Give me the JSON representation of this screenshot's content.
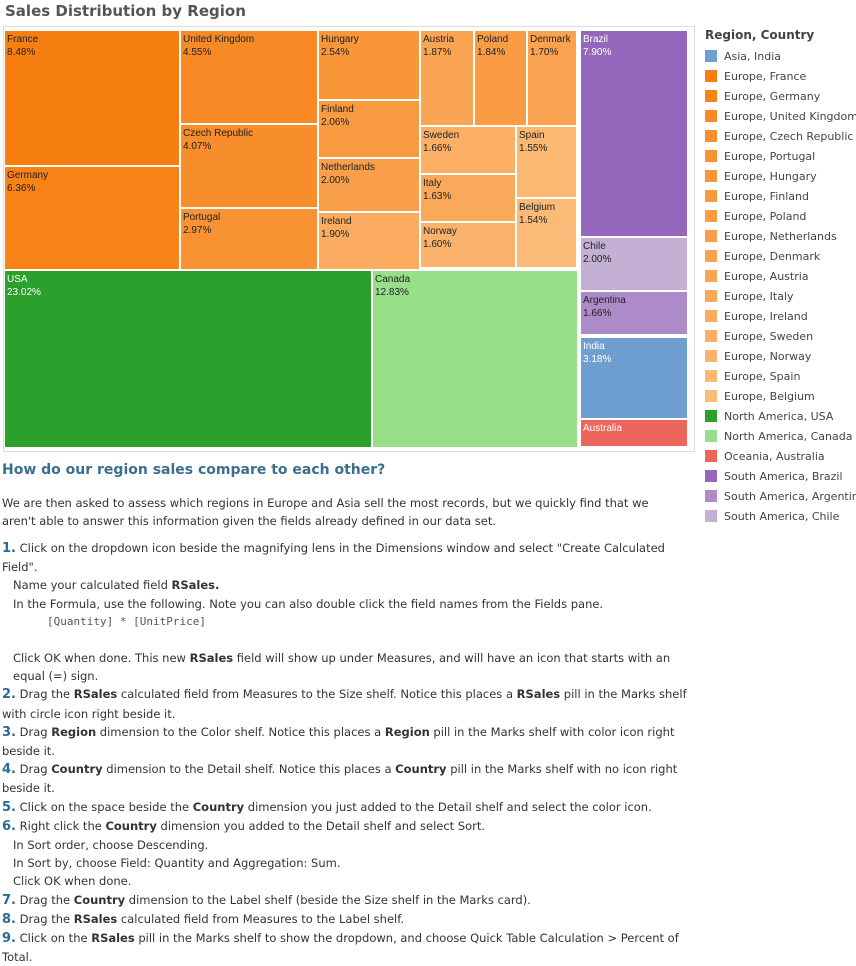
{
  "page": {
    "title": "Sales Distribution by Region",
    "question": "How do our region sales compare to each other?",
    "intro": "We are then asked to assess which regions in Europe and Asia sell the most records, but we quickly find that we aren't able to answer this information given the fields already defined in our data set."
  },
  "chart_data": {
    "type": "treemap",
    "legend_title": "Region, Country",
    "legend": [
      {
        "label": "Asia, India",
        "color": "#6f9fd0"
      },
      {
        "label": "Europe, France",
        "color": "#f77f0f"
      },
      {
        "label": "Europe, Germany",
        "color": "#f78215"
      },
      {
        "label": "Europe, United Kingdom",
        "color": "#f88a25"
      },
      {
        "label": "Europe, Czech Republic",
        "color": "#f88d2b"
      },
      {
        "label": "Europe, Portugal",
        "color": "#f89233"
      },
      {
        "label": "Europe, Hungary",
        "color": "#f99638"
      },
      {
        "label": "Europe, Finland",
        "color": "#f99a40"
      },
      {
        "label": "Europe, Poland",
        "color": "#f99c44"
      },
      {
        "label": "Europe, Netherlands",
        "color": "#fa9f49"
      },
      {
        "label": "Europe, Denmark",
        "color": "#faa24f"
      },
      {
        "label": "Europe, Austria",
        "color": "#faa554"
      },
      {
        "label": "Europe, Italy",
        "color": "#faa95b"
      },
      {
        "label": "Europe, Ireland",
        "color": "#fbac60"
      },
      {
        "label": "Europe, Sweden",
        "color": "#fbb066"
      },
      {
        "label": "Europe, Norway",
        "color": "#fbb36c"
      },
      {
        "label": "Europe, Spain",
        "color": "#fcb772"
      },
      {
        "label": "Europe, Belgium",
        "color": "#fcba78"
      },
      {
        "label": "North  America, USA",
        "color": "#2ca02c"
      },
      {
        "label": "North  America, Canada",
        "color": "#98df8a"
      },
      {
        "label": "Oceania, Australia",
        "color": "#ed665d"
      },
      {
        "label": "South America, Brazil",
        "color": "#9467bd"
      },
      {
        "label": "South America, Argentina",
        "color": "#ad8bc9"
      },
      {
        "label": "South America, Chile",
        "color": "#c5b0d5"
      }
    ],
    "cells": [
      {
        "label": "France",
        "value": 8.48,
        "value_text": "8.48%",
        "color": "#f77f0f"
      },
      {
        "label": "United Kingdom",
        "value": 4.55,
        "value_text": "4.55%",
        "color": "#f88a25"
      },
      {
        "label": "Hungary",
        "value": 2.54,
        "value_text": "2.54%",
        "color": "#f99638"
      },
      {
        "label": "Austria",
        "value": 1.87,
        "value_text": "1.87%",
        "color": "#faa554"
      },
      {
        "label": "Poland",
        "value": 1.84,
        "value_text": "1.84%",
        "color": "#f99c44"
      },
      {
        "label": "Denmark",
        "value": 1.7,
        "value_text": "1.70%",
        "color": "#faa24f"
      },
      {
        "label": "Brazil",
        "value": 7.9,
        "value_text": "7.90%",
        "color": "#9467bd"
      },
      {
        "label": "Finland",
        "value": 2.06,
        "value_text": "2.06%",
        "color": "#f99a40"
      },
      {
        "label": "Czech Republic",
        "value": 4.07,
        "value_text": "4.07%",
        "color": "#f88d2b"
      },
      {
        "label": "Sweden",
        "value": 1.66,
        "value_text": "1.66%",
        "color": "#fbb066"
      },
      {
        "label": "Spain",
        "value": 1.55,
        "value_text": "1.55%",
        "color": "#fcb772"
      },
      {
        "label": "Germany",
        "value": 6.36,
        "value_text": "6.36%",
        "color": "#f78215"
      },
      {
        "label": "Netherlands",
        "value": 2.0,
        "value_text": "2.00%",
        "color": "#fa9f49"
      },
      {
        "label": "Italy",
        "value": 1.63,
        "value_text": "1.63%",
        "color": "#faa95b"
      },
      {
        "label": "Belgium",
        "value": 1.54,
        "value_text": "1.54%",
        "color": "#fcba78"
      },
      {
        "label": "Portugal",
        "value": 2.97,
        "value_text": "2.97%",
        "color": "#f89233"
      },
      {
        "label": "Ireland",
        "value": 1.9,
        "value_text": "1.90%",
        "color": "#fbac60"
      },
      {
        "label": "Norway",
        "value": 1.6,
        "value_text": "1.60%",
        "color": "#fbb36c"
      },
      {
        "label": "Chile",
        "value": 2.0,
        "value_text": "2.00%",
        "color": "#c5b0d5"
      },
      {
        "label": "USA",
        "value": 23.02,
        "value_text": "23.02%",
        "color": "#2ca02c"
      },
      {
        "label": "Canada",
        "value": 12.83,
        "value_text": "12.83%",
        "color": "#98df8a"
      },
      {
        "label": "Argentina",
        "value": 1.66,
        "value_text": "1.66%",
        "color": "#ad8bc9"
      },
      {
        "label": "India",
        "value": 3.18,
        "value_text": "3.18%",
        "color": "#6f9fd0"
      },
      {
        "label": "Australia",
        "value": null,
        "value_text": "",
        "color": "#ed665d"
      }
    ]
  },
  "steps": {
    "s1": {
      "num": "1.",
      "a": "Click on the dropdown icon beside the magnifying lens in the Dimensions window and select \"Create Calculated Field\".",
      "b1": "Name your calculated field ",
      "b2": "RSales.",
      "c": "In the Formula, use the following. Note you can also double click the field names from the Fields pane.",
      "code": "[Quantity] * [UnitPrice]",
      "d1": "Click OK when done. This new ",
      "d2": "RSales",
      "d3": " field will show up under Measures, and will have an icon that starts with an equal (=) sign."
    },
    "s2": {
      "num": "2.",
      "t1": "Drag the ",
      "b1": "RSales",
      "t2": " calculated field from Measures to the Size shelf. Notice this places a ",
      "b2": "RSales",
      "t3": " pill in the Marks shelf with circle icon right beside it."
    },
    "s3": {
      "num": "3.",
      "t1": "Drag ",
      "b1": "Region",
      "t2": " dimension to the Color shelf.  Notice this places a ",
      "b2": "Region",
      "t3": " pill in the Marks shelf with color icon right beside it."
    },
    "s4": {
      "num": "4.",
      "t1": "Drag ",
      "b1": "Country",
      "t2": " dimension to the Detail shelf. Notice this places a ",
      "b2": "Country",
      "t3": " pill in the Marks shelf with no icon right beside it."
    },
    "s5": {
      "num": "5.",
      "t1": "Click on the space beside the ",
      "b1": "Country",
      "t2": " dimension you just added to the Detail shelf and select the color icon."
    },
    "s6": {
      "num": "6.",
      "t1": "Right click the ",
      "b1": "Country",
      "t2": " dimension you added to the Detail shelf and select Sort.",
      "l1": "In Sort order, choose Descending.",
      "l2": "In Sort by, choose Field: Quantity and Aggregation: Sum.",
      "l3": "Click OK when done."
    },
    "s7": {
      "num": "7.",
      "t1": "Drag the ",
      "b1": "Country",
      "t2": " dimension to the Label shelf (beside the Size shelf in the Marks card)."
    },
    "s8": {
      "num": "8.",
      "t1": "Drag the ",
      "b1": "RSales",
      "t2": " calculated field from Measures to the Label shelf."
    },
    "s9": {
      "num": "9.",
      "t1": "Click on the ",
      "b1": "RSales",
      "t2": " pill in the Marks shelf to show the dropdown, and choose Quick Table Calculation > Percent of Total."
    }
  }
}
